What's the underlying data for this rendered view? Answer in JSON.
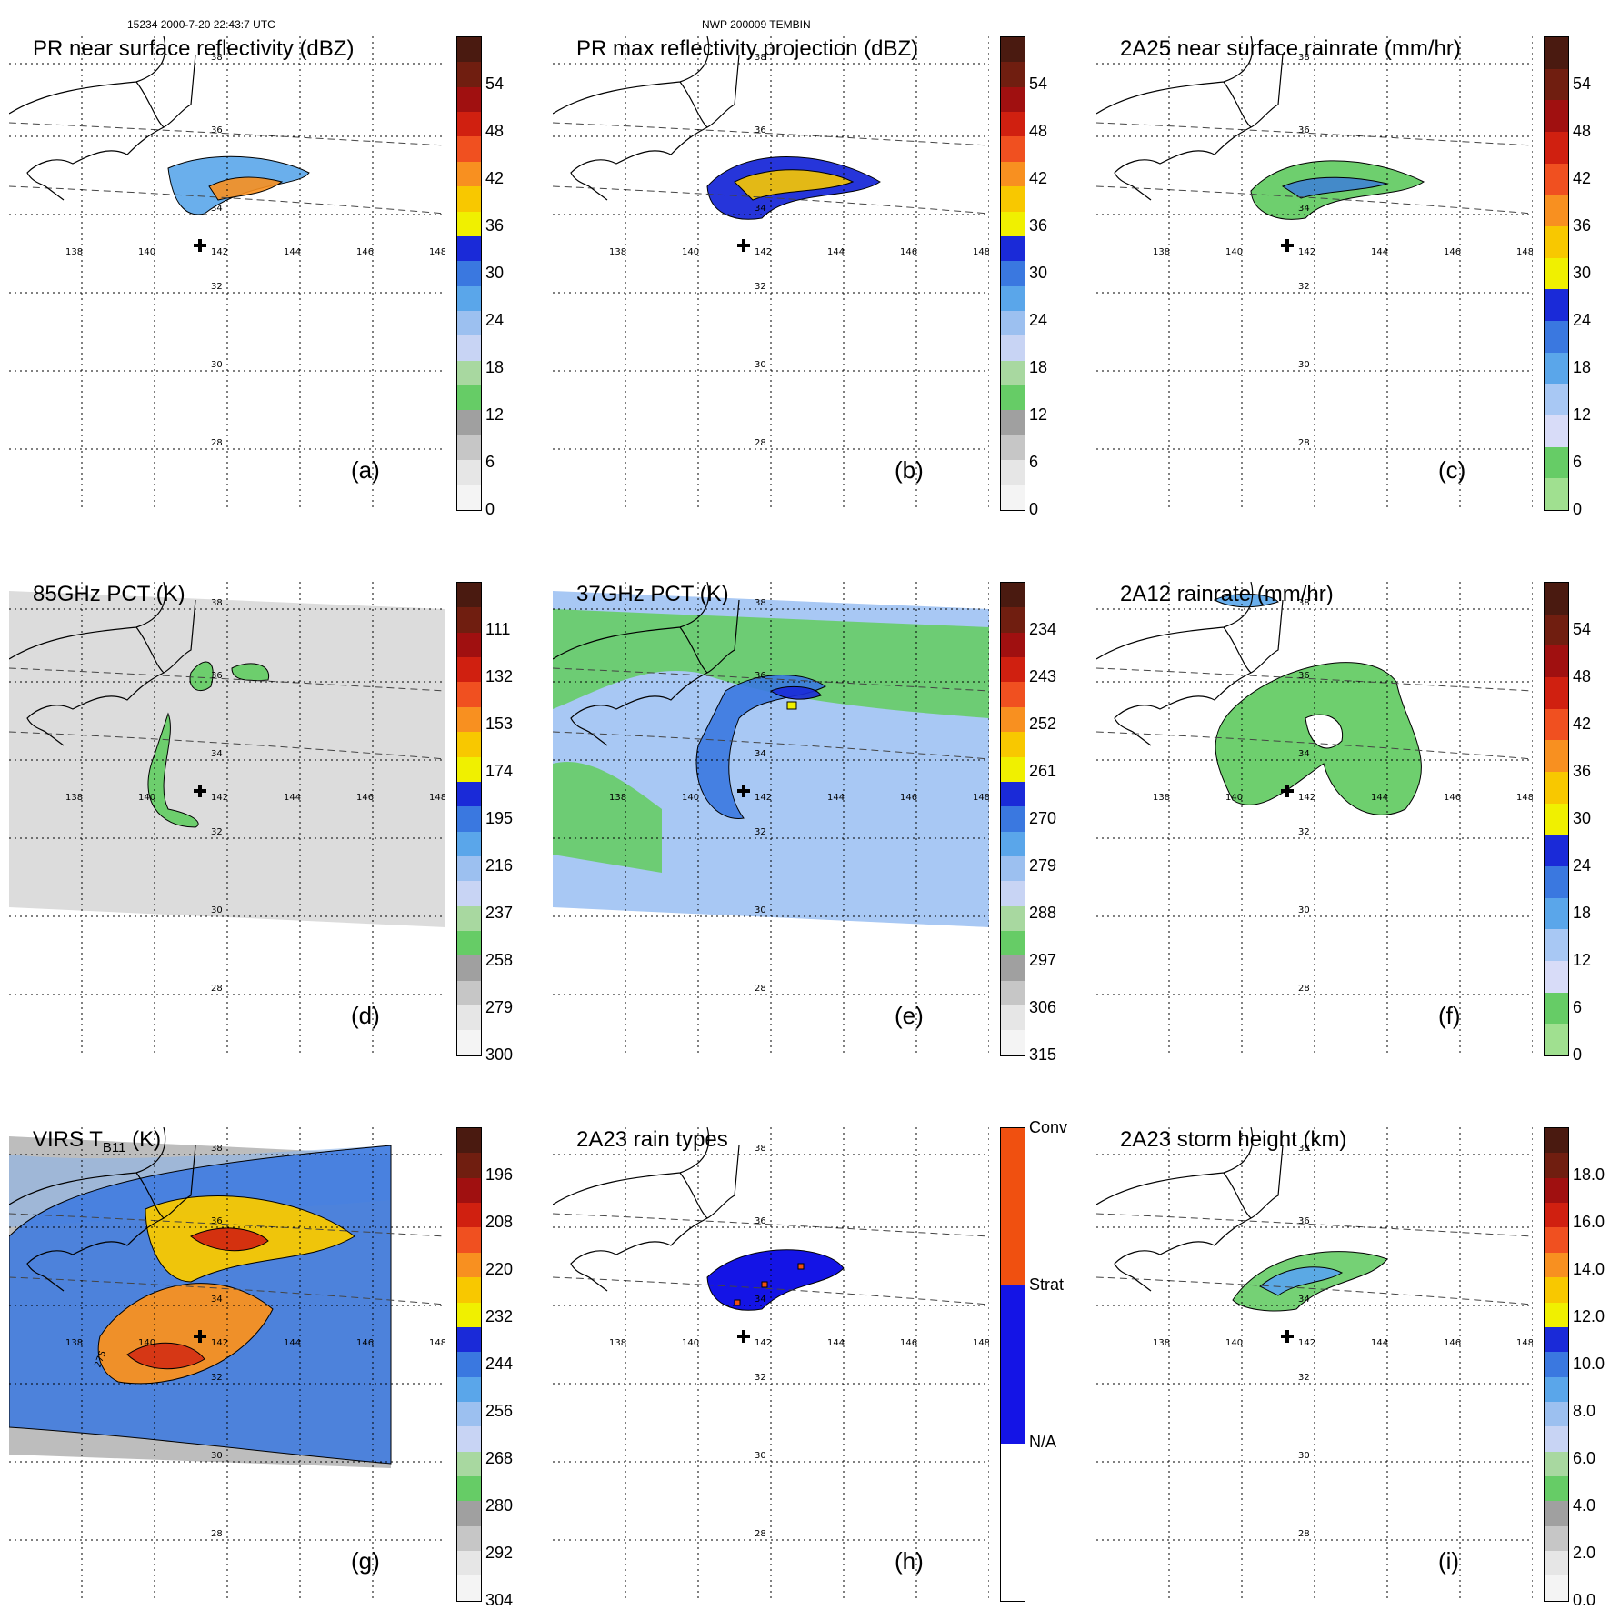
{
  "header": {
    "left": "15234 2000-7-20 22:43:7 UTC",
    "center": "NWP 200009 TEMBIN"
  },
  "axes": {
    "lon_ticks": [
      "138",
      "140",
      "142",
      "144",
      "146",
      "148"
    ],
    "lat_ticks": [
      "38",
      "36",
      "34",
      "32",
      "30",
      "28"
    ]
  },
  "palettes": {
    "std": [
      "#f4f4f4",
      "#e6e6e6",
      "#c6c6c6",
      "#a0a0a0",
      "#66cc66",
      "#a8d8a0",
      "#c8d4f4",
      "#9cc0f0",
      "#5aa6ea",
      "#3a78e0",
      "#1a2ad8",
      "#f0f000",
      "#f8c800",
      "#f89020",
      "#f05020",
      "#d02010",
      "#a01010",
      "#701e10",
      "#4a1a10"
    ],
    "rain": [
      "#a0e090",
      "#66cc66",
      "#d8dcf8",
      "#a8c8f4",
      "#5aa6ea",
      "#3a78e0",
      "#1a2ad8",
      "#f0f000",
      "#f8c800",
      "#f89020",
      "#f05020",
      "#d02010",
      "#a01010",
      "#701e10",
      "#4a1a10"
    ],
    "types": [
      "#ffffff",
      "#1414e6",
      "#f05010"
    ]
  },
  "panels": [
    {
      "id": "a",
      "title": "PR near surface reflectivity (dBZ)",
      "label": "(a)",
      "palette": "std",
      "colorbar": [
        "54",
        "48",
        "42",
        "36",
        "30",
        "24",
        "18",
        "12",
        "6",
        "0"
      ]
    },
    {
      "id": "b",
      "title": "PR max reflectivity projection (dBZ)",
      "label": "(b)",
      "palette": "std",
      "colorbar": [
        "54",
        "48",
        "42",
        "36",
        "30",
        "24",
        "18",
        "12",
        "6",
        "0"
      ]
    },
    {
      "id": "c",
      "title": "2A25 near surface rainrate (mm/hr)",
      "label": "(c)",
      "palette": "rain",
      "colorbar": [
        "54",
        "48",
        "42",
        "36",
        "30",
        "24",
        "18",
        "12",
        "6",
        "0"
      ]
    },
    {
      "id": "d",
      "title": "85GHz PCT (K)",
      "label": "(d)",
      "palette": "std",
      "colorbar": [
        "111",
        "132",
        "153",
        "174",
        "195",
        "216",
        "237",
        "258",
        "279",
        "300"
      ]
    },
    {
      "id": "e",
      "title": "37GHz PCT (K)",
      "label": "(e)",
      "palette": "std",
      "colorbar": [
        "234",
        "243",
        "252",
        "261",
        "270",
        "279",
        "288",
        "297",
        "306",
        "315"
      ]
    },
    {
      "id": "f",
      "title": "2A12 rainrate (mm/hr)",
      "label": "(f)",
      "palette": "rain",
      "colorbar": [
        "54",
        "48",
        "42",
        "36",
        "30",
        "24",
        "18",
        "12",
        "6",
        "0"
      ]
    },
    {
      "id": "g",
      "title": "VIRS T",
      "title_sub": "B11",
      "title_tail": " (K)",
      "label": "(g)",
      "palette": "std",
      "colorbar": [
        "196",
        "208",
        "220",
        "232",
        "244",
        "256",
        "268",
        "280",
        "292",
        "304"
      ],
      "contour_label": "275"
    },
    {
      "id": "h",
      "title": "2A23 rain types",
      "label": "(h)",
      "palette": "types",
      "colorbar": [
        "Conv",
        "Strat",
        "N/A"
      ]
    },
    {
      "id": "i",
      "title": "2A23 storm height (km)",
      "label": "(i)",
      "palette": "std",
      "colorbar": [
        "18.0",
        "16.0",
        "14.0",
        "12.0",
        "10.0",
        "8.0",
        "6.0",
        "4.0",
        "2.0",
        "0.0"
      ]
    }
  ]
}
